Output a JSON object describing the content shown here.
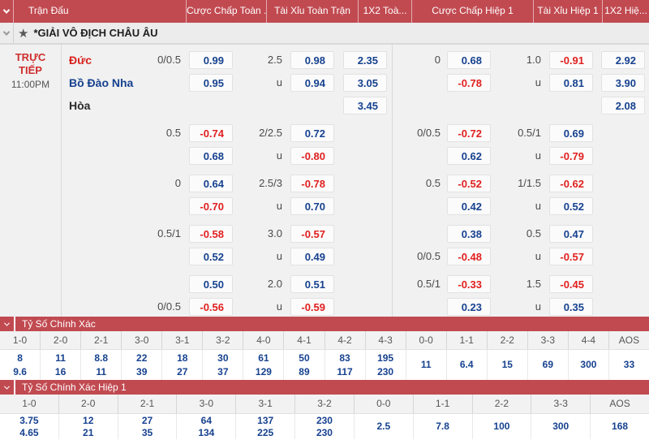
{
  "colors": {
    "header_red": "#c14a51",
    "odd_blue": "#16418f",
    "odd_red": "#e11f1f"
  },
  "header": {
    "columns": [
      "Trận Đấu",
      "Cược Chấp Toàn ...",
      "Tài Xỉu Toàn Trận",
      "1X2 Toà...",
      "Cược Chấp Hiệp 1",
      "Tài Xỉu Hiệp 1",
      "1X2 Hiệ..."
    ]
  },
  "league": {
    "name": "*GIẢI VÔ ĐỊCH CHÂU ÂU"
  },
  "match": {
    "status": "TRỰC TIẾP",
    "time": "11:00PM",
    "teams": [
      "Đức",
      "Bồ Đào Nha",
      "Hòa"
    ]
  },
  "odds_groups": [
    {
      "ft_hdp": [
        [
          "0/0.5",
          "0.99"
        ],
        [
          "",
          "0.95"
        ]
      ],
      "ft_ou": [
        [
          "2.5",
          "0.98"
        ],
        [
          "u",
          "0.94"
        ]
      ],
      "ft_1x2": [
        "2.35",
        "3.05",
        "3.45"
      ],
      "h1_hdp": [
        [
          "0",
          "0.68"
        ],
        [
          "",
          "-0.78"
        ]
      ],
      "h1_ou": [
        [
          "1.0",
          "-0.91"
        ],
        [
          "u",
          "0.81"
        ]
      ],
      "h1_1x2": [
        "2.92",
        "3.90",
        "2.08"
      ]
    },
    {
      "ft_hdp": [
        [
          "0.5",
          "-0.74"
        ],
        [
          "",
          "0.68"
        ]
      ],
      "ft_ou": [
        [
          "2/2.5",
          "0.72"
        ],
        [
          "u",
          "-0.80"
        ]
      ],
      "ft_1x2": [],
      "h1_hdp": [
        [
          "0/0.5",
          "-0.72"
        ],
        [
          "",
          "0.62"
        ]
      ],
      "h1_ou": [
        [
          "0.5/1",
          "0.69"
        ],
        [
          "u",
          "-0.79"
        ]
      ],
      "h1_1x2": []
    },
    {
      "ft_hdp": [
        [
          "0",
          "0.64"
        ],
        [
          "",
          "-0.70"
        ]
      ],
      "ft_ou": [
        [
          "2.5/3",
          "-0.78"
        ],
        [
          "u",
          "0.70"
        ]
      ],
      "ft_1x2": [],
      "h1_hdp": [
        [
          "0.5",
          "-0.52"
        ],
        [
          "",
          "0.42"
        ]
      ],
      "h1_ou": [
        [
          "1/1.5",
          "-0.62"
        ],
        [
          "u",
          "0.52"
        ]
      ],
      "h1_1x2": []
    },
    {
      "ft_hdp": [
        [
          "0.5/1",
          "-0.58"
        ],
        [
          "",
          "0.52"
        ]
      ],
      "ft_ou": [
        [
          "3.0",
          "-0.57"
        ],
        [
          "u",
          "0.49"
        ]
      ],
      "ft_1x2": [],
      "h1_hdp": [
        [
          "",
          "0.38"
        ],
        [
          "0/0.5",
          "-0.48"
        ]
      ],
      "h1_ou": [
        [
          "0.5",
          "0.47"
        ],
        [
          "u",
          "-0.57"
        ]
      ],
      "h1_1x2": []
    },
    {
      "ft_hdp": [
        [
          "",
          "0.50"
        ],
        [
          "0/0.5",
          "-0.56"
        ]
      ],
      "ft_ou": [
        [
          "2.0",
          "0.51"
        ],
        [
          "u",
          "-0.59"
        ]
      ],
      "ft_1x2": [],
      "h1_hdp": [
        [
          "0.5/1",
          "-0.33"
        ],
        [
          "",
          "0.23"
        ]
      ],
      "h1_ou": [
        [
          "1.5",
          "-0.45"
        ],
        [
          "u",
          "0.35"
        ]
      ],
      "h1_1x2": []
    }
  ],
  "correct_score": {
    "title": "Tỷ Số Chính Xác",
    "columns": [
      {
        "score": "1-0",
        "values": [
          "8",
          "9.6"
        ]
      },
      {
        "score": "2-0",
        "values": [
          "11",
          "16"
        ]
      },
      {
        "score": "2-1",
        "values": [
          "8.8",
          "11"
        ]
      },
      {
        "score": "3-0",
        "values": [
          "22",
          "39"
        ]
      },
      {
        "score": "3-1",
        "values": [
          "18",
          "27"
        ]
      },
      {
        "score": "3-2",
        "values": [
          "30",
          "37"
        ]
      },
      {
        "score": "4-0",
        "values": [
          "61",
          "129"
        ]
      },
      {
        "score": "4-1",
        "values": [
          "50",
          "89"
        ]
      },
      {
        "score": "4-2",
        "values": [
          "83",
          "117"
        ]
      },
      {
        "score": "4-3",
        "values": [
          "195",
          "230"
        ]
      },
      {
        "score": "0-0",
        "values": [
          "11"
        ]
      },
      {
        "score": "1-1",
        "values": [
          "6.4"
        ]
      },
      {
        "score": "2-2",
        "values": [
          "15"
        ]
      },
      {
        "score": "3-3",
        "values": [
          "69"
        ]
      },
      {
        "score": "4-4",
        "values": [
          "300"
        ]
      },
      {
        "score": "AOS",
        "values": [
          "33"
        ]
      }
    ]
  },
  "correct_score_h1": {
    "title": "Tỷ Số Chính Xác Hiệp 1",
    "columns": [
      {
        "score": "1-0",
        "values": [
          "3.75",
          "4.65"
        ]
      },
      {
        "score": "2-0",
        "values": [
          "12",
          "21"
        ]
      },
      {
        "score": "2-1",
        "values": [
          "27",
          "35"
        ]
      },
      {
        "score": "3-0",
        "values": [
          "64",
          "134"
        ]
      },
      {
        "score": "3-1",
        "values": [
          "137",
          "225"
        ]
      },
      {
        "score": "3-2",
        "values": [
          "230",
          "230"
        ]
      },
      {
        "score": "0-0",
        "values": [
          "2.5"
        ]
      },
      {
        "score": "1-1",
        "values": [
          "7.8"
        ]
      },
      {
        "score": "2-2",
        "values": [
          "100"
        ]
      },
      {
        "score": "3-3",
        "values": [
          "300"
        ]
      },
      {
        "score": "AOS",
        "values": [
          "168"
        ]
      }
    ]
  }
}
